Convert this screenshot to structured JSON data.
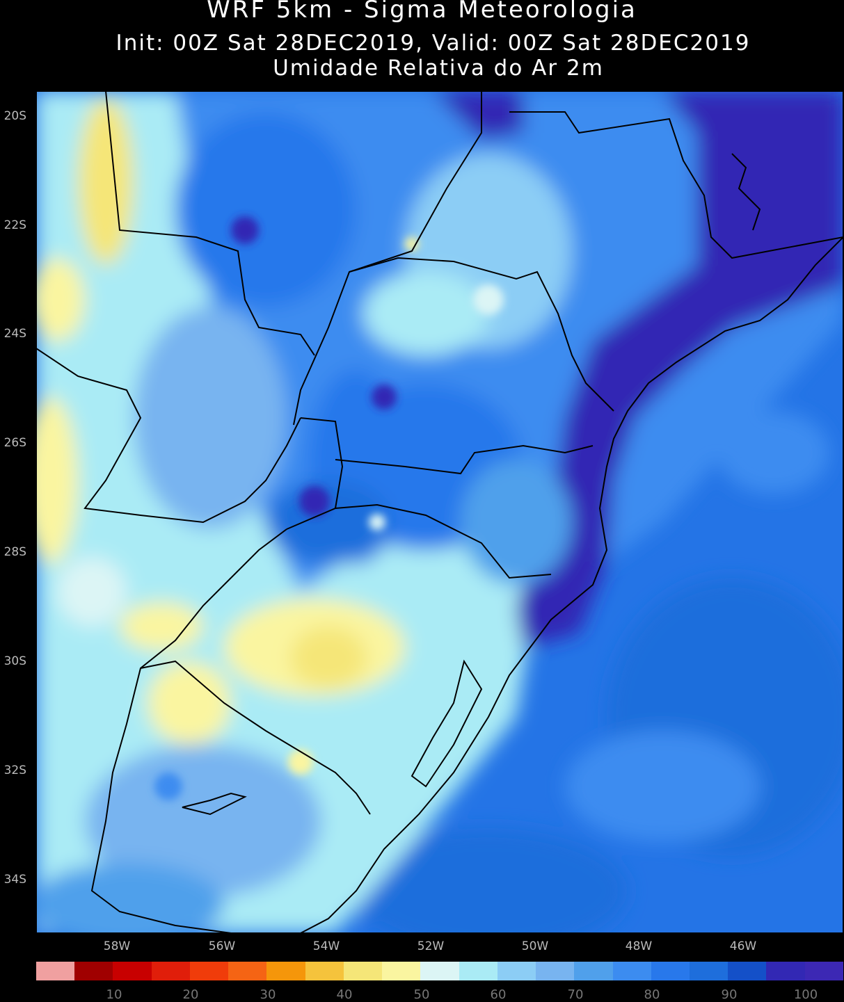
{
  "header": {
    "title": "WRF 5km - Sigma Meteorologia",
    "init_valid": "Init: 00Z Sat 28DEC2019, Valid: 00Z Sat 28DEC2019",
    "variable": "Umidade Relativa do Ar 2m"
  },
  "axes": {
    "lat_labels": [
      "20S",
      "22S",
      "24S",
      "26S",
      "28S",
      "30S",
      "32S",
      "34S"
    ],
    "lon_labels": [
      "58W",
      "56W",
      "54W",
      "52W",
      "50W",
      "48W",
      "46W"
    ]
  },
  "colorbar": {
    "colors": [
      "#f0a0a0",
      "#a00000",
      "#c80000",
      "#e01e0a",
      "#f03c0a",
      "#f56414",
      "#f5960a",
      "#f5c33c",
      "#f5e678",
      "#faf5a0",
      "#dcf5f5",
      "#aaebf5",
      "#8ccdf5",
      "#78b4f0",
      "#50a0eb",
      "#3c8cf0",
      "#2878eb",
      "#1e6edc",
      "#1450c8",
      "#3228b4",
      "#3c28b4"
    ],
    "tick_labels": [
      "10",
      "20",
      "30",
      "40",
      "50",
      "60",
      "70",
      "80",
      "90",
      "100"
    ]
  },
  "colors": {
    "ocean": "#2474e6",
    "background": "#000000",
    "border": "#000000"
  }
}
